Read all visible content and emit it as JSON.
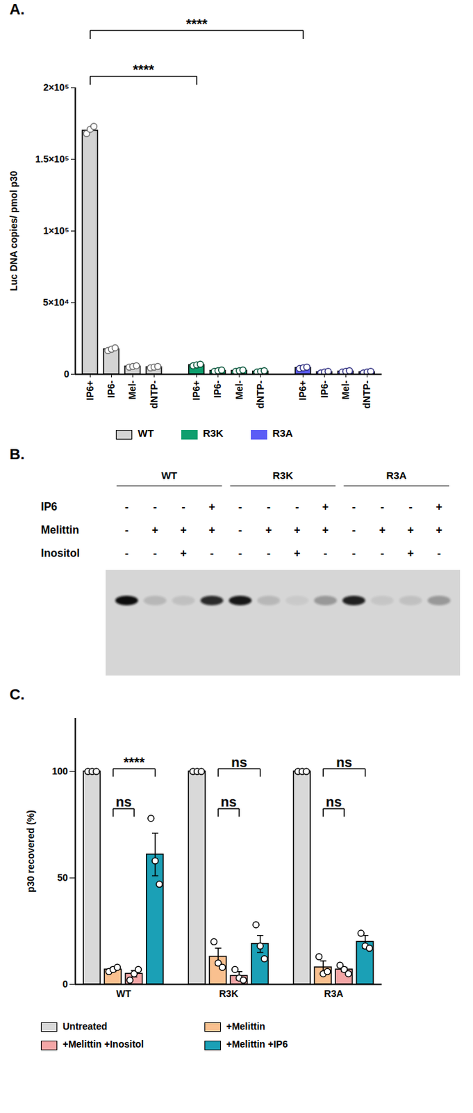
{
  "chart_data": [
    {
      "type": "bar",
      "title": "A.",
      "ylabel": "Luc DNA copies/ pmol p30",
      "categories": [
        "IP6+",
        "IP6-",
        "Mel-",
        "dNTP-"
      ],
      "series": [
        {
          "name": "WT",
          "color": "#d3d3d3",
          "values": [
            170000,
            17500,
            5500,
            5000
          ],
          "points": [
            [
              168000,
              171000,
              173000
            ],
            [
              16500,
              17500,
              18500
            ],
            [
              5000,
              5500,
              6000
            ],
            [
              4500,
              5000,
              5500
            ]
          ]
        },
        {
          "name": "R3K",
          "color": "#0e9f6e",
          "values": [
            6500,
            2500,
            2500,
            2000
          ],
          "points": [
            [
              6000,
              6500,
              7000
            ],
            [
              2000,
              2500,
              3000
            ],
            [
              2000,
              2500,
              3000
            ],
            [
              1500,
              2000,
              2500
            ]
          ]
        },
        {
          "name": "R3A",
          "color": "#5b5cf6",
          "values": [
            4500,
            1500,
            2000,
            1500
          ],
          "points": [
            [
              4000,
              4500,
              5000
            ],
            [
              1000,
              1500,
              2000
            ],
            [
              1500,
              2000,
              2500
            ],
            [
              1000,
              1500,
              2000
            ]
          ]
        }
      ],
      "ylim": [
        0,
        200000
      ],
      "yticks": [
        0,
        {
          "value": 50000,
          "label": "5×10⁴"
        },
        {
          "value": 100000,
          "label": "1×10⁵"
        },
        {
          "value": 150000,
          "label": "1.5×10⁵"
        },
        {
          "value": 200000,
          "label": "2×10⁵"
        }
      ],
      "annotations": [
        {
          "label": "****",
          "from": {
            "series": "WT",
            "category": "IP6+"
          },
          "to": {
            "series": "R3K",
            "category": "IP6+"
          }
        },
        {
          "label": "****",
          "from": {
            "series": "WT",
            "category": "IP6+"
          },
          "to": {
            "series": "R3A",
            "category": "IP6+"
          }
        }
      ],
      "legend": "bottom"
    },
    {
      "type": "blot",
      "title": "B.",
      "groups": [
        "WT",
        "R3K",
        "R3A"
      ],
      "conditions": [
        {
          "name": "IP6",
          "values": [
            "-",
            "-",
            "-",
            "+",
            "-",
            "-",
            "-",
            "+",
            "-",
            "-",
            "-",
            "+"
          ]
        },
        {
          "name": "Melittin",
          "values": [
            "-",
            "+",
            "+",
            "+",
            "-",
            "+",
            "+",
            "+",
            "-",
            "+",
            "+",
            "+"
          ]
        },
        {
          "name": "Inositol",
          "values": [
            "-",
            "-",
            "+",
            "-",
            "-",
            "-",
            "+",
            "-",
            "-",
            "-",
            "+",
            "-"
          ]
        }
      ],
      "band_intensity": [
        100,
        15,
        10,
        85,
        95,
        15,
        6,
        30,
        90,
        8,
        10,
        30
      ]
    },
    {
      "type": "bar",
      "title": "C.",
      "ylabel": "p30 recovered (%)",
      "categories": [
        "WT",
        "R3K",
        "R3A"
      ],
      "series": [
        {
          "name": "Untreated",
          "color": "#d9d9d9",
          "values": [
            100,
            100,
            100
          ],
          "errors": [
            0,
            0,
            0
          ],
          "points": [
            [
              100,
              100,
              100
            ],
            [
              100,
              100,
              100
            ],
            [
              100,
              100,
              100
            ]
          ]
        },
        {
          "name": "+Melittin",
          "color": "#f9c08f",
          "values": [
            7,
            13,
            8
          ],
          "errors": [
            1,
            4,
            3
          ],
          "points": [
            [
              6,
              7,
              8
            ],
            [
              20,
              10,
              8
            ],
            [
              13,
              5,
              6
            ]
          ]
        },
        {
          "name": "+Melittin +Inositol",
          "color": "#f4a6a6",
          "values": [
            5,
            4,
            7
          ],
          "errors": [
            1.5,
            2,
            1
          ],
          "points": [
            [
              2,
              5,
              7
            ],
            [
              7,
              3,
              2
            ],
            [
              9,
              7,
              5
            ]
          ]
        },
        {
          "name": "+Melittin +IP6",
          "color": "#1ba0b6",
          "values": [
            61,
            19,
            20
          ],
          "errors": [
            10,
            4,
            3
          ],
          "points": [
            [
              78,
              58,
              47
            ],
            [
              28,
              18,
              12
            ],
            [
              24,
              18,
              17
            ]
          ]
        }
      ],
      "ylim": [
        0,
        125
      ],
      "yticks": [
        0,
        50,
        100
      ],
      "annotations": [
        {
          "category": "WT",
          "from": "+Melittin",
          "to": "+Melittin +Inositol",
          "label": "ns"
        },
        {
          "category": "WT",
          "from": "+Melittin",
          "to": "+Melittin +IP6",
          "label": "****"
        },
        {
          "category": "R3K",
          "from": "+Melittin",
          "to": "+Melittin +Inositol",
          "label": "ns"
        },
        {
          "category": "R3K",
          "from": "+Melittin",
          "to": "+Melittin +IP6",
          "label": "ns"
        },
        {
          "category": "R3A",
          "from": "+Melittin",
          "to": "+Melittin +Inositol",
          "label": "ns"
        },
        {
          "category": "R3A",
          "from": "+Melittin",
          "to": "+Melittin +IP6",
          "label": "ns"
        }
      ],
      "legend": "bottom"
    }
  ]
}
